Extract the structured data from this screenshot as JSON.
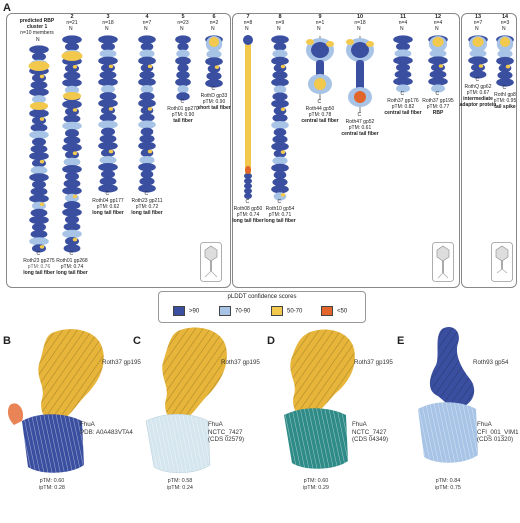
{
  "colors": {
    "very_high": "#3a4fa0",
    "confident": "#a7c3e6",
    "low": "#f2c94c",
    "very_low": "#e2652b",
    "teal": "#2e8b87",
    "light_blue": "#cfe0f0",
    "pale": "#dfeaf2",
    "gold": "#e7b53a"
  },
  "panel_a": {
    "letter": "A",
    "header_line1": "predicted RBP",
    "header_line2": "cluster 1",
    "header_line3": "n=10 members",
    "n_label": "N",
    "c_label": "C",
    "columns": [
      {
        "num": "1",
        "n": "",
        "name": "Roth23 gp275",
        "ptm": "pTM: 0.76",
        "desc": "long tail fiber"
      },
      {
        "num": "2",
        "n": "n=21",
        "name": "Roth01 gp268",
        "ptm": "pTM: 0.74",
        "desc": "long tail fiber"
      },
      {
        "num": "3",
        "n": "n=18",
        "name": "Roth04 gp177",
        "ptm": "pTM: 0.62",
        "desc": "long tail fiber"
      },
      {
        "num": "4",
        "n": "n=7",
        "name": "Roth23 gp211",
        "ptm": "pTM: 0.72",
        "desc": "long tail fiber"
      },
      {
        "num": "5",
        "n": "n=23",
        "name": "Roth01 gp270",
        "ptm": "pTM: 0.90",
        "desc": "tail fiber"
      },
      {
        "num": "6",
        "n": "n=2",
        "name": "RothD gp33",
        "ptm": "pTM: 0.90",
        "desc": "short tail fiber"
      },
      {
        "num": "7",
        "n": "n=8",
        "name": "Roth08 gp50",
        "ptm": "pTM: 0.74",
        "desc": "long tail fiber"
      },
      {
        "num": "8",
        "n": "n=9",
        "name": "Roth10 gp54",
        "ptm": "pTM: 0.71",
        "desc": "long tail fiber"
      },
      {
        "num": "9",
        "n": "n=1",
        "name": "Roth44 gp50",
        "ptm": "pTM: 0.78",
        "desc": "central tail fiber"
      },
      {
        "num": "10",
        "n": "n=18",
        "name": "Roth47 gp52",
        "ptm": "pTM: 0.61",
        "desc": "central tail fiber"
      },
      {
        "num": "11",
        "n": "n=4",
        "name": "Roth37 gp176",
        "ptm": "pTM: 0.82",
        "desc": "central tail fiber"
      },
      {
        "num": "12",
        "n": "n=4",
        "name": "Roth37 gp195",
        "ptm": "pTM: 0.77",
        "desc": "RBP"
      },
      {
        "num": "13",
        "n": "n=7",
        "name": "RothQ gp62",
        "ptm": "pTM: 0.67",
        "desc": "intermediate adaptor protein"
      },
      {
        "num": "14",
        "n": "n=3",
        "name": "RothI gp8",
        "ptm": "pTM: 0.95",
        "desc": "tail spike"
      }
    ]
  },
  "legend": {
    "title": "pLDDT confidence scores",
    "items": [
      ">90",
      "70-90",
      "50-70",
      "<50"
    ]
  },
  "panel_b": {
    "letter": "B",
    "top_label": "Roth37 gp195",
    "bottom_label": "FhuA",
    "bottom_sub": "PDB: A0A483VTA4",
    "ptm": "pTM: 0.60",
    "iptm": "ipTM: 0.28"
  },
  "panel_c": {
    "letter": "C",
    "top_label": "Roth37 gp195",
    "bottom_label": "FhuA",
    "bottom_sub": "NCTC_7427",
    "bottom_sub2": "(CDS 02579)",
    "ptm": "pTM: 0.58",
    "iptm": "ipTM: 0.24"
  },
  "panel_d": {
    "letter": "D",
    "top_label": "Roth37 gp195",
    "bottom_label": "FhuA",
    "bottom_sub": "NCTC_7427",
    "bottom_sub2": "(CDS 04349)",
    "ptm": "pTM: 0.60",
    "iptm": "ipTM: 0.29"
  },
  "panel_e": {
    "letter": "E",
    "top_label": "Roth93 gp54",
    "bottom_label": "FhuA",
    "bottom_sub": "CFI_001_VIM1",
    "bottom_sub2": "(CDS 01320)",
    "ptm": "pTM: 0.84",
    "iptm": "ipTM: 0.75"
  }
}
